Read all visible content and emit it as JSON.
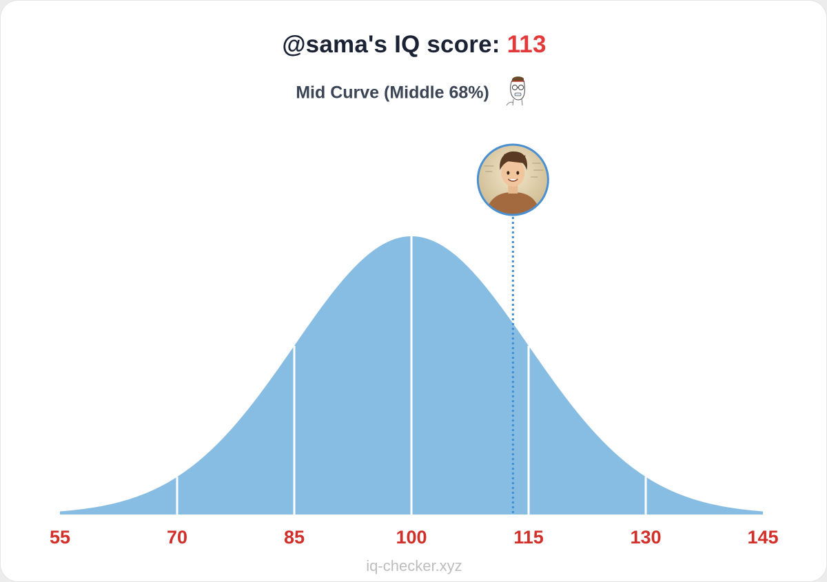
{
  "header": {
    "title_prefix": "@sama's IQ score: ",
    "score": "113",
    "subtitle": "Mid Curve (Middle 68%)",
    "subtitle_icon": "wojak-nerd-icon"
  },
  "footer": {
    "site": "iq-checker.xyz"
  },
  "colors": {
    "curve_fill": "#88bde3",
    "divider": "#ffffff",
    "marker": "#3d8fd6",
    "tick_text": "#d12f2a",
    "score": "#e23a3a",
    "title": "#1a2233"
  },
  "chart_data": {
    "type": "area",
    "distribution": "normal",
    "mean": 100,
    "sd": 15,
    "xlim": [
      55,
      145
    ],
    "tick_labels": [
      "55",
      "70",
      "85",
      "100",
      "115",
      "130",
      "145"
    ],
    "ticks": [
      55,
      70,
      85,
      100,
      115,
      130,
      145
    ],
    "section_dividers": [
      70,
      85,
      100,
      115,
      130
    ],
    "marker": {
      "value": 113,
      "avatar_icon": "profile-avatar-icon"
    },
    "grid": false
  }
}
